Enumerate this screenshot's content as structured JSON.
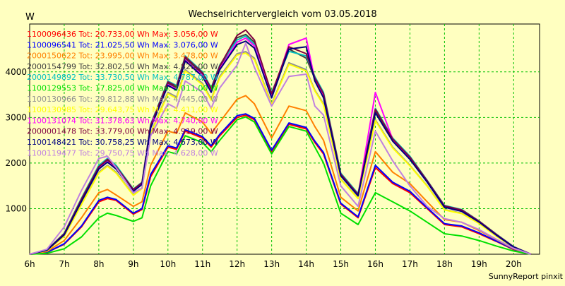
{
  "chart_data": {
    "type": "line",
    "title": "Wechselrichtervergleich vom 03.05.2018",
    "ylabel": "W",
    "xlabel": "",
    "footer": "SunnyReport pinxit",
    "x": [
      "6h",
      "6.5h",
      "7h",
      "7.5h",
      "8h",
      "8.25h",
      "8.5h",
      "9h",
      "9.25h",
      "9.5h",
      "10h",
      "10.25h",
      "10.5h",
      "11h",
      "11.25h",
      "11.5h",
      "12h",
      "12.25h",
      "12.5h",
      "13h",
      "13.5h",
      "14h",
      "14.25h",
      "14.5h",
      "15h",
      "15.5h",
      "16h",
      "16.5h",
      "17h",
      "17.5h",
      "18h",
      "18.5h",
      "19h",
      "19.5h",
      "20h",
      "20.5h"
    ],
    "x_ticks": [
      "6h",
      "7h",
      "8h",
      "9h",
      "10h",
      "11h",
      "12h",
      "13h",
      "14h",
      "15h",
      "16h",
      "17h",
      "18h",
      "19h",
      "20h"
    ],
    "y_ticks": [
      1000,
      2000,
      3000,
      4000
    ],
    "ylim": [
      0,
      5050
    ],
    "grid": true,
    "legend_position": "top-left",
    "series": [
      {
        "name": "1100096436 Tot: 20.733,00 Wh Max: 3.056,00 W",
        "color": "#ff0000",
        "values": [
          0,
          40,
          220,
          600,
          1150,
          1220,
          1180,
          880,
          980,
          1700,
          2350,
          2300,
          2700,
          2550,
          2350,
          2600,
          3000,
          3050,
          2950,
          2250,
          2850,
          2750,
          2450,
          2200,
          1100,
          800,
          1900,
          1550,
          1350,
          1000,
          650,
          600,
          450,
          280,
          100,
          0
        ]
      },
      {
        "name": "1100096541 Tot: 21.025,50 Wh Max: 3.076,00 W",
        "color": "#0000ff",
        "values": [
          0,
          40,
          230,
          620,
          1180,
          1250,
          1200,
          900,
          1000,
          1750,
          2380,
          2330,
          2730,
          2580,
          2380,
          2630,
          3040,
          3080,
          2980,
          2280,
          2880,
          2780,
          2480,
          2230,
          1120,
          820,
          1950,
          1580,
          1380,
          1020,
          670,
          620,
          470,
          290,
          110,
          0
        ]
      },
      {
        "name": "2000150622 Tot: 23.995,00 Wh Max: 3.478,00 W",
        "color": "#ff8000",
        "values": [
          0,
          60,
          300,
          800,
          1350,
          1420,
          1300,
          1050,
          1150,
          1950,
          2700,
          2650,
          3100,
          2900,
          2650,
          2900,
          3400,
          3480,
          3300,
          2550,
          3250,
          3150,
          2800,
          2500,
          1250,
          950,
          2250,
          1800,
          1550,
          1150,
          760,
          700,
          520,
          320,
          120,
          0
        ]
      },
      {
        "name": "2000154799 Tot: 32.802,50 Wh Max: 4.820,00 W",
        "color": "#404040",
        "values": [
          0,
          90,
          440,
          1200,
          1900,
          2050,
          1900,
          1400,
          1550,
          2800,
          3750,
          3650,
          4300,
          3950,
          3600,
          4100,
          4750,
          4820,
          4650,
          3500,
          4500,
          4300,
          3850,
          3500,
          1750,
          1300,
          3150,
          2500,
          2100,
          1600,
          1050,
          960,
          720,
          430,
          160,
          0
        ]
      },
      {
        "name": "2000149892 Tot: 33.730,50 Wh Max: 4.787,00 W",
        "color": "#00c0c0",
        "values": [
          0,
          95,
          460,
          1230,
          1950,
          2100,
          1950,
          1430,
          1580,
          2850,
          3800,
          3700,
          4350,
          4000,
          3650,
          4150,
          4700,
          4787,
          4600,
          3550,
          4450,
          4350,
          3900,
          3550,
          1780,
          1330,
          3200,
          2550,
          2150,
          1620,
          1070,
          980,
          730,
          440,
          165,
          0
        ]
      },
      {
        "name": "1100129553 Tot: 17.825,00 Wh Max: 3.011,00 W",
        "color": "#00e000",
        "values": [
          0,
          20,
          120,
          380,
          800,
          900,
          850,
          720,
          800,
          1500,
          2250,
          2200,
          2600,
          2450,
          2250,
          2500,
          2950,
          3011,
          2900,
          2200,
          2800,
          2700,
          2350,
          2000,
          900,
          650,
          1350,
          1150,
          950,
          700,
          450,
          400,
          300,
          180,
          70,
          0
        ]
      },
      {
        "name": "1100130966 Tot: 29.812,88 Wh Max: 4.445,00 W",
        "color": "#909090",
        "values": [
          0,
          80,
          400,
          1100,
          1800,
          1950,
          1800,
          1300,
          1450,
          2650,
          3550,
          3450,
          4050,
          3750,
          3400,
          3900,
          4400,
          4445,
          4300,
          3300,
          4200,
          4050,
          3600,
          3300,
          1650,
          1230,
          2950,
          2350,
          1950,
          1500,
          980,
          900,
          680,
          400,
          150,
          0
        ]
      },
      {
        "name": "1100130985 Tot: 29.643,75 Wh Max: 4.411,00 W",
        "color": "#ffff00",
        "values": [
          0,
          78,
          395,
          1090,
          1780,
          1930,
          1780,
          1290,
          1440,
          2630,
          3520,
          3420,
          4020,
          3720,
          3380,
          3870,
          4370,
          4411,
          4270,
          3280,
          4170,
          4020,
          3580,
          3280,
          1640,
          1220,
          2930,
          2330,
          1940,
          1490,
          970,
          890,
          675,
          395,
          148,
          0
        ]
      },
      {
        "name": "1100131074 Tot: 31.378,63 Wh Max: 4.740,00 W",
        "color": "#ff00ff",
        "values": [
          0,
          88,
          430,
          1170,
          1880,
          2030,
          1880,
          1390,
          1540,
          2780,
          3720,
          3620,
          4260,
          3920,
          3570,
          4070,
          4650,
          4740,
          4570,
          3450,
          4600,
          4740,
          3820,
          3450,
          1730,
          1290,
          3550,
          2520,
          2120,
          1600,
          1040,
          950,
          710,
          420,
          158,
          0
        ]
      },
      {
        "name": "2000001478 Tot: 33.779,00 Wh Max: 4.919,00 W",
        "color": "#800040",
        "values": [
          0,
          92,
          450,
          1210,
          1920,
          2080,
          1920,
          1420,
          1570,
          2830,
          3780,
          3680,
          4330,
          3980,
          3630,
          4130,
          4800,
          4919,
          4700,
          3520,
          4550,
          4400,
          3870,
          3520,
          1760,
          1310,
          3180,
          2530,
          2130,
          1610,
          1060,
          970,
          725,
          435,
          162,
          0
        ]
      },
      {
        "name": "1100148421 Tot: 30.758,25 Wh Max: 4.673,00 W",
        "color": "#000080",
        "values": [
          0,
          86,
          425,
          1160,
          1870,
          2020,
          1870,
          1380,
          1530,
          2770,
          3700,
          3600,
          4240,
          3900,
          3550,
          4050,
          4600,
          4673,
          4520,
          3430,
          4500,
          4550,
          3800,
          3430,
          1720,
          1280,
          3100,
          2480,
          2080,
          1580,
          1030,
          940,
          705,
          418,
          155,
          0
        ]
      },
      {
        "name": "1100119477 Tot: 29.750,75 Wh Max: 4.628,00 W",
        "color": "#c080e0",
        "values": [
          0,
          110,
          600,
          1400,
          2100,
          2150,
          1900,
          1350,
          1450,
          2600,
          3300,
          3200,
          3800,
          3550,
          3200,
          3650,
          4150,
          4628,
          4100,
          3250,
          3900,
          3950,
          3250,
          3050,
          1500,
          1050,
          2700,
          2050,
          1500,
          1050,
          780,
          700,
          540,
          330,
          130,
          0
        ]
      }
    ]
  }
}
